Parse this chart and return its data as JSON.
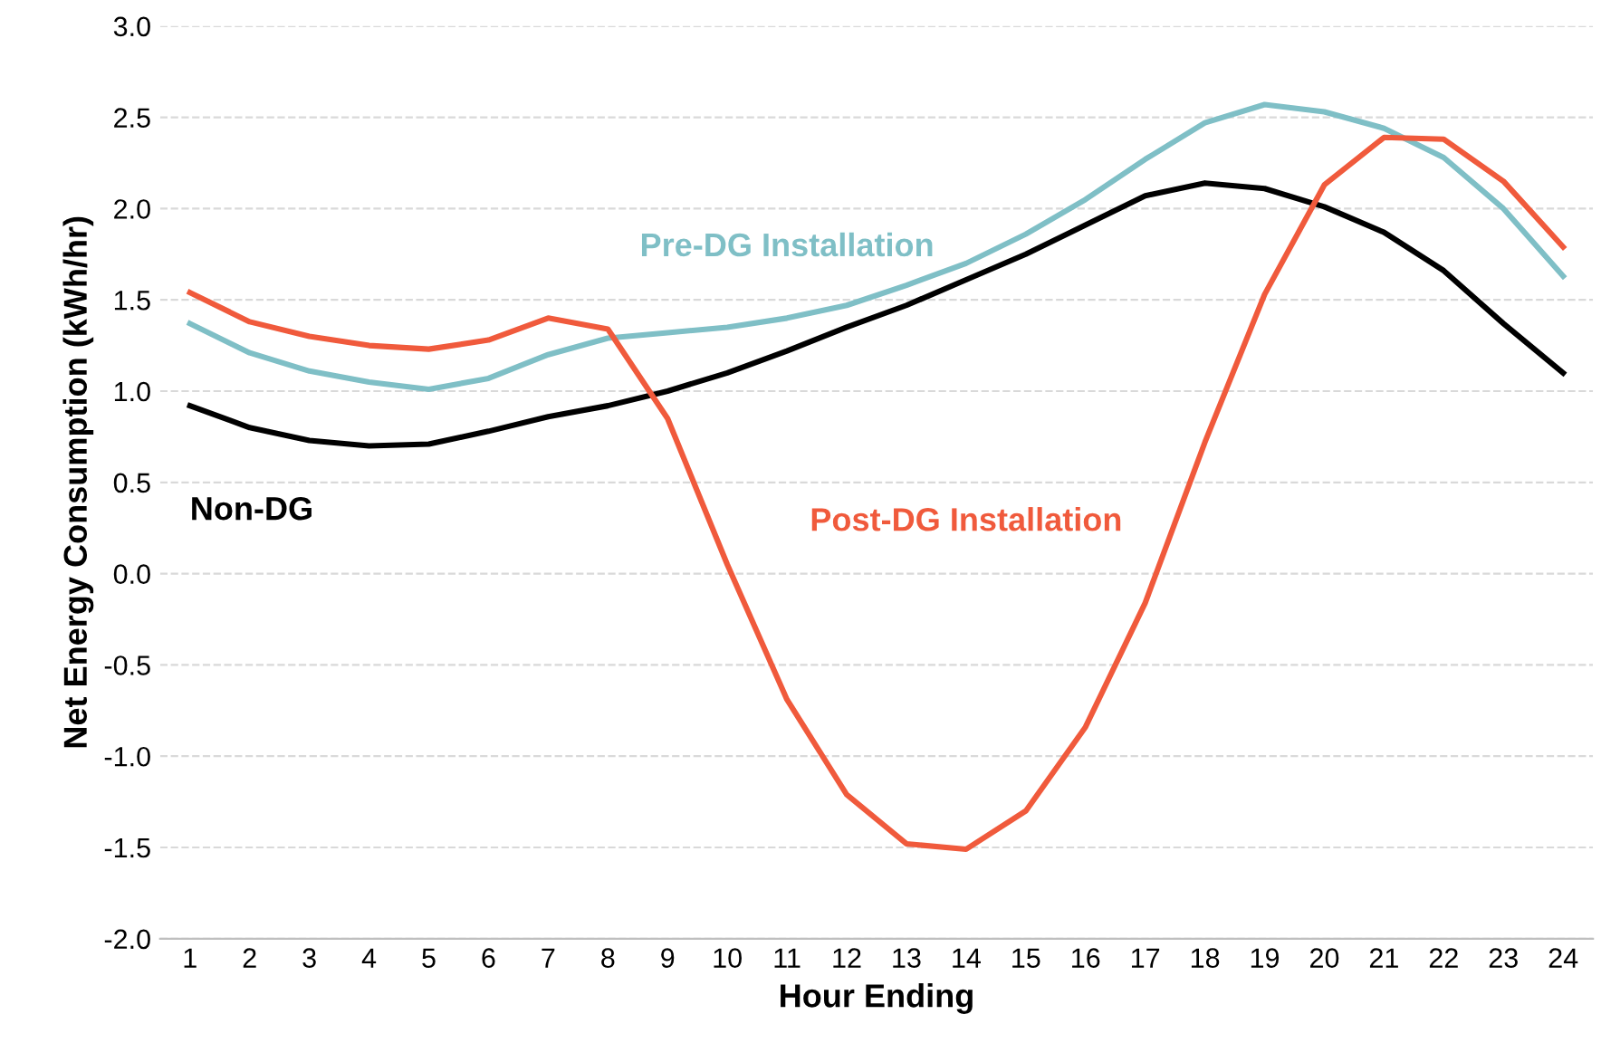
{
  "chart_data": {
    "type": "line",
    "xlabel": "Hour Ending",
    "ylabel": "Net Energy Consumption (kWh/hr)",
    "categories": [
      "1",
      "2",
      "3",
      "4",
      "5",
      "6",
      "7",
      "8",
      "9",
      "10",
      "11",
      "12",
      "13",
      "14",
      "15",
      "16",
      "17",
      "18",
      "19",
      "20",
      "21",
      "22",
      "23",
      "24"
    ],
    "series": [
      {
        "name": "Pre-DG Installation",
        "color": "#7fbfc6",
        "values": [
          1.37,
          1.21,
          1.11,
          1.05,
          1.01,
          1.07,
          1.2,
          1.29,
          1.32,
          1.35,
          1.4,
          1.47,
          1.58,
          1.7,
          1.86,
          2.05,
          2.27,
          2.47,
          2.57,
          2.53,
          2.44,
          2.28,
          2.0,
          1.63
        ]
      },
      {
        "name": "Non-DG",
        "color": "#000000",
        "values": [
          0.92,
          0.8,
          0.73,
          0.7,
          0.71,
          0.78,
          0.86,
          0.92,
          1.0,
          1.1,
          1.22,
          1.35,
          1.47,
          1.61,
          1.75,
          1.91,
          2.07,
          2.14,
          2.11,
          2.01,
          1.87,
          1.66,
          1.37,
          1.1
        ]
      },
      {
        "name": "Post-DG Installation",
        "color": "#f05a3c",
        "values": [
          1.54,
          1.38,
          1.3,
          1.25,
          1.23,
          1.28,
          1.4,
          1.34,
          0.85,
          0.05,
          -0.69,
          -1.21,
          -1.48,
          -1.51,
          -1.3,
          -0.84,
          -0.16,
          0.72,
          1.53,
          2.13,
          2.39,
          2.38,
          2.15,
          1.79
        ]
      }
    ],
    "ylim": [
      -2.0,
      3.0
    ],
    "yticks": [
      {
        "value": -2.0,
        "label": "-2.0"
      },
      {
        "value": -1.5,
        "label": "-1.5"
      },
      {
        "value": -1.0,
        "label": "-1.0"
      },
      {
        "value": -0.5,
        "label": "-0.5"
      },
      {
        "value": 0.0,
        "label": "0.0"
      },
      {
        "value": 0.5,
        "label": "0.5"
      },
      {
        "value": 1.0,
        "label": "1.0"
      },
      {
        "value": 1.5,
        "label": "1.5"
      },
      {
        "value": 2.0,
        "label": "2.0"
      },
      {
        "value": 2.5,
        "label": "2.5"
      },
      {
        "value": 3.0,
        "label": "3.0"
      }
    ],
    "grid": "y",
    "legend": false,
    "marker": "none",
    "line_style": "solid"
  }
}
